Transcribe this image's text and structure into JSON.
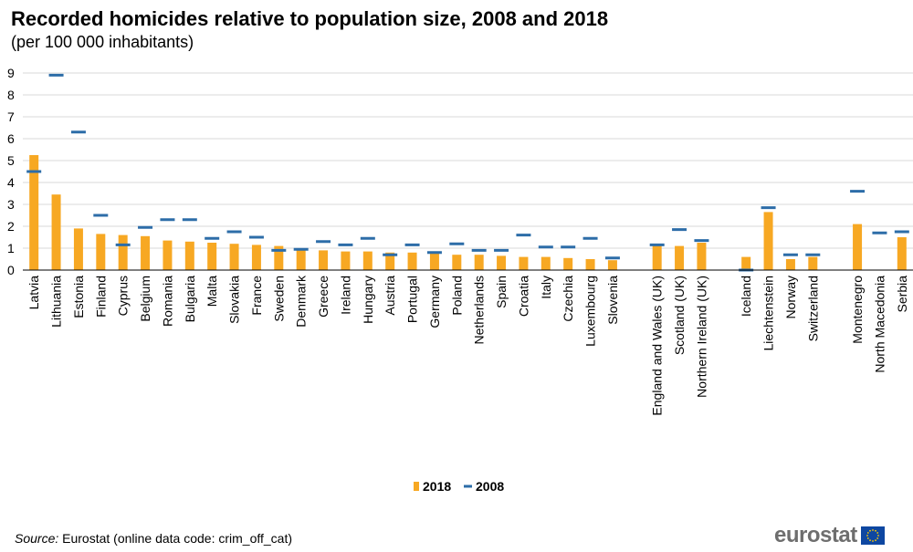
{
  "header": {
    "title": "Recorded homicides relative to population size, 2008 and 2018",
    "subtitle": "(per 100 000 inhabitants)"
  },
  "footer": {
    "source_label": "Source:",
    "source_text": "Eurostat (online data code: crim_off_cat)",
    "logo_text": "eurostat"
  },
  "colors": {
    "bar_2018": "#f7a823",
    "marker_2008": "#2d6da8",
    "grid": "#d9d9d9",
    "logo_text": "#6e6e6e",
    "eu_flag": "#0e47a1",
    "eu_stars": "#ffcc00"
  },
  "chart_data": {
    "type": "bar",
    "ylim": [
      0,
      9
    ],
    "yticks": [
      0,
      1,
      2,
      3,
      4,
      5,
      6,
      7,
      8,
      9
    ],
    "grid": true,
    "legend_position": "bottom",
    "categories": [
      "Latvia",
      "Lithuania",
      "Estonia",
      "Finland",
      "Cyprus",
      "Belgium",
      "Romania",
      "Bulgaria",
      "Malta",
      "Slovakia",
      "France",
      "Sweden",
      "Denmark",
      "Greece",
      "Ireland",
      "Hungary",
      "Austria",
      "Portugal",
      "Germany",
      "Poland",
      "Netherlands",
      "Spain",
      "Croatia",
      "Italy",
      "Czechia",
      "Luxembourg",
      "Slovenia",
      "",
      "England and Wales (UK)",
      "Scotland (UK)",
      "Northern Ireland (UK)",
      "",
      "Iceland",
      "Liechtenstein",
      "Norway",
      "Switzerland",
      "",
      "Montenegro",
      "North Macedonia",
      "Serbia"
    ],
    "series": [
      {
        "name": "2018",
        "style": "bar",
        "values": [
          5.25,
          3.45,
          1.9,
          1.65,
          1.6,
          1.55,
          1.35,
          1.3,
          1.25,
          1.2,
          1.15,
          1.1,
          1.0,
          0.9,
          0.85,
          0.85,
          0.8,
          0.8,
          0.75,
          0.7,
          0.7,
          0.65,
          0.6,
          0.6,
          0.55,
          0.5,
          0.45,
          null,
          1.2,
          1.1,
          1.25,
          null,
          0.6,
          2.65,
          0.5,
          0.6,
          null,
          2.1,
          null,
          1.5
        ]
      },
      {
        "name": "2008",
        "style": "marker",
        "values": [
          4.5,
          8.9,
          6.3,
          2.5,
          1.15,
          1.95,
          2.3,
          2.3,
          1.45,
          1.75,
          1.5,
          0.9,
          0.95,
          1.3,
          1.15,
          1.45,
          0.7,
          1.15,
          0.8,
          1.2,
          0.9,
          0.9,
          1.6,
          1.05,
          1.05,
          1.45,
          0.55,
          null,
          1.15,
          1.85,
          1.35,
          null,
          0.0,
          2.85,
          0.7,
          0.7,
          null,
          3.6,
          1.7,
          1.75
        ]
      }
    ]
  }
}
